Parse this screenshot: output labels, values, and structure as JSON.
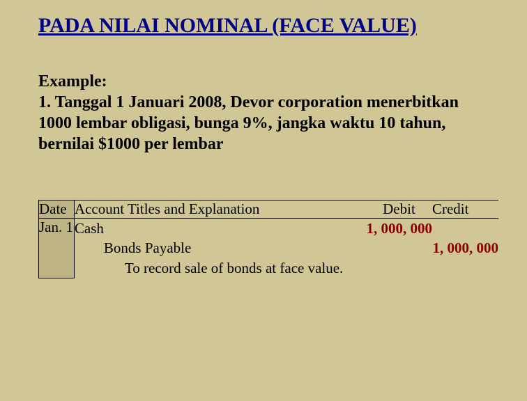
{
  "title": "PADA NILAI NOMINAL (FACE VALUE)",
  "example": {
    "label": "Example:",
    "text": "1. Tanggal 1 Januari 2008, Devor corporation menerbitkan 1000 lembar  obligasi, bunga 9%, jangka waktu 10 tahun, bernilai $1000 per lembar"
  },
  "table": {
    "headers": {
      "date": "Date",
      "account": "Account Titles and Explanation",
      "debit": "Debit",
      "credit": "Credit"
    },
    "row": {
      "date": "Jan. 1",
      "account_line1": "Cash",
      "account_line2": "Bonds Payable",
      "account_line3": "To record sale of bonds at face value.",
      "debit": "1, 000, 000",
      "credit": "1, 000, 000"
    }
  },
  "colors": {
    "background": "#d0c696",
    "title": "#000088",
    "amount": "#8b0000",
    "cell_shade": "#bdb385",
    "border": "#000000",
    "text": "#000000"
  },
  "fonts": {
    "family": "Times New Roman",
    "title_size_pt": 22,
    "body_size_pt": 18,
    "table_size_pt": 16
  }
}
